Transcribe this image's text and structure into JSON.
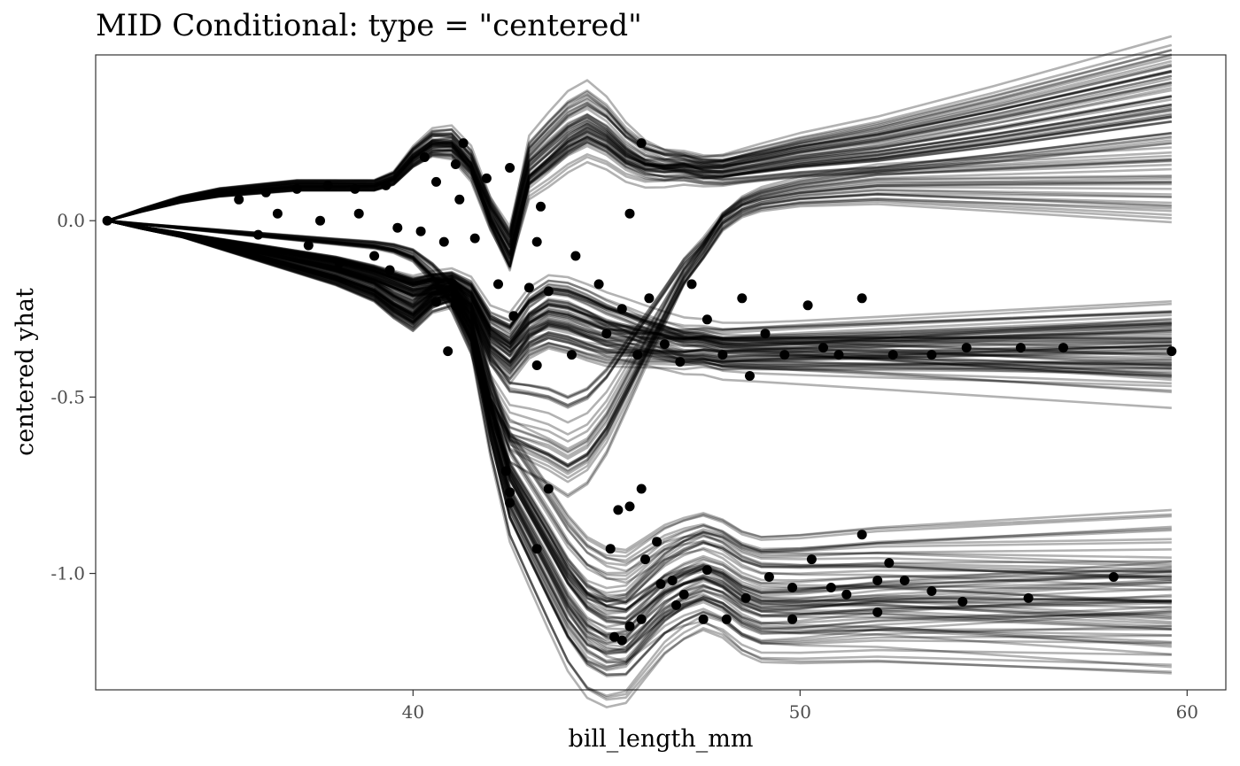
{
  "chart_data": {
    "type": "line",
    "title": "MID Conditional: type = \"centered\"",
    "xlabel": "bill_length_mm",
    "ylabel": "centered yhat",
    "xlim": [
      31.8,
      61.0
    ],
    "ylim": [
      -1.33,
      0.47
    ],
    "x_ticks": [
      40,
      50,
      60
    ],
    "x_tick_labels": [
      "40",
      "50",
      "60"
    ],
    "y_ticks": [
      0.0,
      -0.5,
      -1.0
    ],
    "y_tick_labels": [
      "0.0",
      "-0.5",
      "-1.0"
    ],
    "grid": false,
    "legend": "none",
    "line_color": "#000000",
    "line_opacity": 0.3,
    "x_grid": [
      32.1,
      33,
      34,
      35,
      36,
      37,
      38,
      39,
      39.5,
      40,
      40.5,
      41,
      41.5,
      42,
      42.5,
      43,
      43.5,
      44,
      44.5,
      45,
      45.5,
      46,
      46.5,
      47,
      47.5,
      48,
      48.5,
      49,
      50,
      52,
      55,
      59.6
    ],
    "representative_curves": [
      {
        "label": "upper",
        "values": [
          0,
          0.03,
          0.06,
          0.08,
          0.09,
          0.1,
          0.1,
          0.1,
          0.12,
          0.18,
          0.22,
          0.22,
          0.16,
          0.02,
          -0.08,
          0.15,
          0.2,
          0.25,
          0.28,
          0.25,
          0.2,
          0.17,
          0.16,
          0.16,
          0.15,
          0.15,
          0.16,
          0.17,
          0.19,
          0.22,
          0.28,
          0.38
        ]
      },
      {
        "label": "middle",
        "values": [
          0,
          -0.02,
          -0.04,
          -0.06,
          -0.08,
          -0.1,
          -0.12,
          -0.15,
          -0.17,
          -0.19,
          -0.18,
          -0.18,
          -0.22,
          -0.33,
          -0.37,
          -0.3,
          -0.27,
          -0.28,
          -0.3,
          -0.32,
          -0.33,
          -0.34,
          -0.35,
          -0.36,
          -0.36,
          -0.37,
          -0.37,
          -0.37,
          -0.37,
          -0.37,
          -0.37,
          -0.37
        ]
      },
      {
        "label": "crossing",
        "values": [
          0,
          -0.01,
          -0.02,
          -0.03,
          -0.04,
          -0.05,
          -0.06,
          -0.07,
          -0.08,
          -0.1,
          -0.15,
          -0.22,
          -0.32,
          -0.48,
          -0.58,
          -0.6,
          -0.62,
          -0.65,
          -0.62,
          -0.55,
          -0.45,
          -0.35,
          -0.25,
          -0.15,
          -0.08,
          0.0,
          0.04,
          0.06,
          0.08,
          0.1,
          0.1,
          0.1
        ]
      },
      {
        "label": "lower",
        "values": [
          0,
          -0.02,
          -0.04,
          -0.07,
          -0.1,
          -0.13,
          -0.16,
          -0.2,
          -0.24,
          -0.27,
          -0.22,
          -0.2,
          -0.3,
          -0.55,
          -0.75,
          -0.85,
          -0.95,
          -1.05,
          -1.12,
          -1.15,
          -1.15,
          -1.1,
          -1.05,
          -1.02,
          -1.0,
          -1.02,
          -1.06,
          -1.08,
          -1.08,
          -1.07,
          -1.07,
          -1.07
        ]
      }
    ],
    "points_description_free": true,
    "points": [
      {
        "x": 32.1,
        "y": 0.0
      },
      {
        "x": 35.5,
        "y": 0.06
      },
      {
        "x": 36.2,
        "y": 0.08
      },
      {
        "x": 37.0,
        "y": 0.09
      },
      {
        "x": 37.8,
        "y": 0.1
      },
      {
        "x": 38.5,
        "y": 0.09
      },
      {
        "x": 39.3,
        "y": 0.1
      },
      {
        "x": 36.0,
        "y": -0.04
      },
      {
        "x": 37.3,
        "y": -0.07
      },
      {
        "x": 38.1,
        "y": -0.12
      },
      {
        "x": 39.0,
        "y": -0.1
      },
      {
        "x": 39.4,
        "y": -0.14
      },
      {
        "x": 36.5,
        "y": 0.02
      },
      {
        "x": 37.6,
        "y": 0.0
      },
      {
        "x": 38.6,
        "y": 0.02
      },
      {
        "x": 39.6,
        "y": -0.02
      },
      {
        "x": 40.3,
        "y": 0.18
      },
      {
        "x": 40.6,
        "y": 0.11
      },
      {
        "x": 41.1,
        "y": 0.16
      },
      {
        "x": 41.3,
        "y": 0.22
      },
      {
        "x": 41.2,
        "y": 0.06
      },
      {
        "x": 41.9,
        "y": 0.12
      },
      {
        "x": 42.5,
        "y": 0.15
      },
      {
        "x": 43.3,
        "y": 0.04
      },
      {
        "x": 45.9,
        "y": 0.22
      },
      {
        "x": 45.6,
        "y": 0.02
      },
      {
        "x": 40.2,
        "y": -0.03
      },
      {
        "x": 40.8,
        "y": -0.06
      },
      {
        "x": 41.6,
        "y": -0.05
      },
      {
        "x": 42.2,
        "y": -0.18
      },
      {
        "x": 43.2,
        "y": -0.06
      },
      {
        "x": 44.2,
        "y": -0.1
      },
      {
        "x": 40.6,
        "y": -0.23
      },
      {
        "x": 41.1,
        "y": -0.24
      },
      {
        "x": 40.9,
        "y": -0.37
      },
      {
        "x": 42.6,
        "y": -0.27
      },
      {
        "x": 43.0,
        "y": -0.19
      },
      {
        "x": 43.5,
        "y": -0.2
      },
      {
        "x": 43.2,
        "y": -0.41
      },
      {
        "x": 44.1,
        "y": -0.38
      },
      {
        "x": 44.8,
        "y": -0.18
      },
      {
        "x": 45.0,
        "y": -0.32
      },
      {
        "x": 45.4,
        "y": -0.25
      },
      {
        "x": 45.8,
        "y": -0.38
      },
      {
        "x": 46.1,
        "y": -0.22
      },
      {
        "x": 46.5,
        "y": -0.35
      },
      {
        "x": 46.9,
        "y": -0.4
      },
      {
        "x": 47.2,
        "y": -0.18
      },
      {
        "x": 47.6,
        "y": -0.28
      },
      {
        "x": 48.0,
        "y": -0.38
      },
      {
        "x": 48.5,
        "y": -0.22
      },
      {
        "x": 48.7,
        "y": -0.44
      },
      {
        "x": 49.1,
        "y": -0.32
      },
      {
        "x": 49.6,
        "y": -0.38
      },
      {
        "x": 50.2,
        "y": -0.24
      },
      {
        "x": 50.6,
        "y": -0.36
      },
      {
        "x": 51.0,
        "y": -0.38
      },
      {
        "x": 51.6,
        "y": -0.22
      },
      {
        "x": 52.4,
        "y": -0.38
      },
      {
        "x": 53.4,
        "y": -0.38
      },
      {
        "x": 54.3,
        "y": -0.36
      },
      {
        "x": 55.7,
        "y": -0.36
      },
      {
        "x": 56.8,
        "y": -0.36
      },
      {
        "x": 59.6,
        "y": -0.37
      },
      {
        "x": 42.4,
        "y": -0.71
      },
      {
        "x": 42.5,
        "y": -0.77
      },
      {
        "x": 42.5,
        "y": -0.8
      },
      {
        "x": 43.5,
        "y": -0.76
      },
      {
        "x": 43.2,
        "y": -0.93
      },
      {
        "x": 45.1,
        "y": -0.93
      },
      {
        "x": 45.3,
        "y": -0.82
      },
      {
        "x": 45.6,
        "y": -0.81
      },
      {
        "x": 45.9,
        "y": -0.76
      },
      {
        "x": 46.0,
        "y": -0.96
      },
      {
        "x": 46.3,
        "y": -0.91
      },
      {
        "x": 46.4,
        "y": -1.03
      },
      {
        "x": 46.7,
        "y": -1.02
      },
      {
        "x": 46.8,
        "y": -1.09
      },
      {
        "x": 47.0,
        "y": -1.06
      },
      {
        "x": 47.6,
        "y": -0.99
      },
      {
        "x": 45.2,
        "y": -1.18
      },
      {
        "x": 45.4,
        "y": -1.19
      },
      {
        "x": 45.6,
        "y": -1.15
      },
      {
        "x": 45.9,
        "y": -1.13
      },
      {
        "x": 47.5,
        "y": -1.13
      },
      {
        "x": 48.1,
        "y": -1.13
      },
      {
        "x": 48.6,
        "y": -1.07
      },
      {
        "x": 49.2,
        "y": -1.01
      },
      {
        "x": 49.8,
        "y": -1.04
      },
      {
        "x": 50.3,
        "y": -0.96
      },
      {
        "x": 50.8,
        "y": -1.04
      },
      {
        "x": 51.2,
        "y": -1.06
      },
      {
        "x": 51.6,
        "y": -0.89
      },
      {
        "x": 52.0,
        "y": -1.02
      },
      {
        "x": 52.3,
        "y": -0.97
      },
      {
        "x": 52.7,
        "y": -1.02
      },
      {
        "x": 53.4,
        "y": -1.05
      },
      {
        "x": 54.2,
        "y": -1.08
      },
      {
        "x": 49.8,
        "y": -1.13
      },
      {
        "x": 52.0,
        "y": -1.11
      },
      {
        "x": 55.9,
        "y": -1.07
      },
      {
        "x": 58.1,
        "y": -1.01
      }
    ]
  }
}
